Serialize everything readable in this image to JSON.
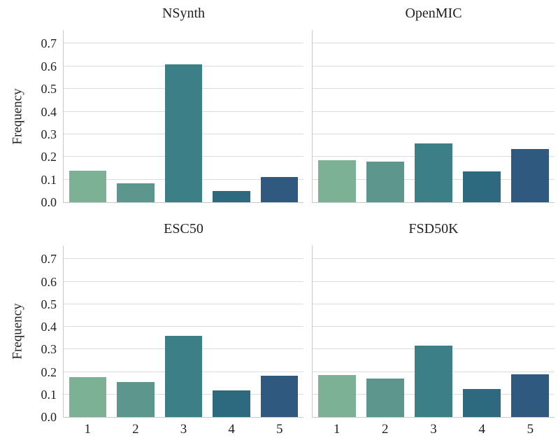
{
  "figure": {
    "ylabel": "Frequency",
    "background": "#ffffff",
    "grid_color": "#dcdcdc",
    "spine_color": "#c9c9c9",
    "text_color": "#1f1f1f",
    "palette": [
      "#7db196",
      "#5c968d",
      "#3d7f87",
      "#2d6a80",
      "#2f597e"
    ],
    "yticklabels": [
      "0.0",
      "0.1",
      "0.2",
      "0.3",
      "0.4",
      "0.5",
      "0.6",
      "0.7"
    ]
  },
  "chart_data": [
    {
      "type": "bar",
      "title": "NSynth",
      "xlabel": "",
      "ylabel": "Frequency",
      "categories": [
        "1",
        "2",
        "3",
        "4",
        "5"
      ],
      "values": [
        0.14,
        0.083,
        0.61,
        0.049,
        0.11
      ],
      "ylim": [
        0,
        0.76
      ],
      "yticks": [
        0,
        0.1,
        0.2,
        0.3,
        0.4,
        0.5,
        0.6,
        0.7
      ],
      "grid": true,
      "legend": false
    },
    {
      "type": "bar",
      "title": "OpenMIC",
      "xlabel": "",
      "ylabel": "",
      "categories": [
        "1",
        "2",
        "3",
        "4",
        "5"
      ],
      "values": [
        0.185,
        0.18,
        0.26,
        0.135,
        0.235
      ],
      "ylim": [
        0,
        0.76
      ],
      "yticks": [
        0,
        0.1,
        0.2,
        0.3,
        0.4,
        0.5,
        0.6,
        0.7
      ],
      "grid": true,
      "legend": false
    },
    {
      "type": "bar",
      "title": "ESC50",
      "xlabel": "",
      "ylabel": "Frequency",
      "categories": [
        "1",
        "2",
        "3",
        "4",
        "5"
      ],
      "values": [
        0.178,
        0.156,
        0.36,
        0.117,
        0.184
      ],
      "ylim": [
        0,
        0.76
      ],
      "yticks": [
        0,
        0.1,
        0.2,
        0.3,
        0.4,
        0.5,
        0.6,
        0.7
      ],
      "grid": true,
      "legend": false
    },
    {
      "type": "bar",
      "title": "FSD50K",
      "xlabel": "",
      "ylabel": "",
      "categories": [
        "1",
        "2",
        "3",
        "4",
        "5"
      ],
      "values": [
        0.185,
        0.172,
        0.318,
        0.125,
        0.19
      ],
      "ylim": [
        0,
        0.76
      ],
      "yticks": [
        0,
        0.1,
        0.2,
        0.3,
        0.4,
        0.5,
        0.6,
        0.7
      ],
      "grid": true,
      "legend": false
    }
  ]
}
